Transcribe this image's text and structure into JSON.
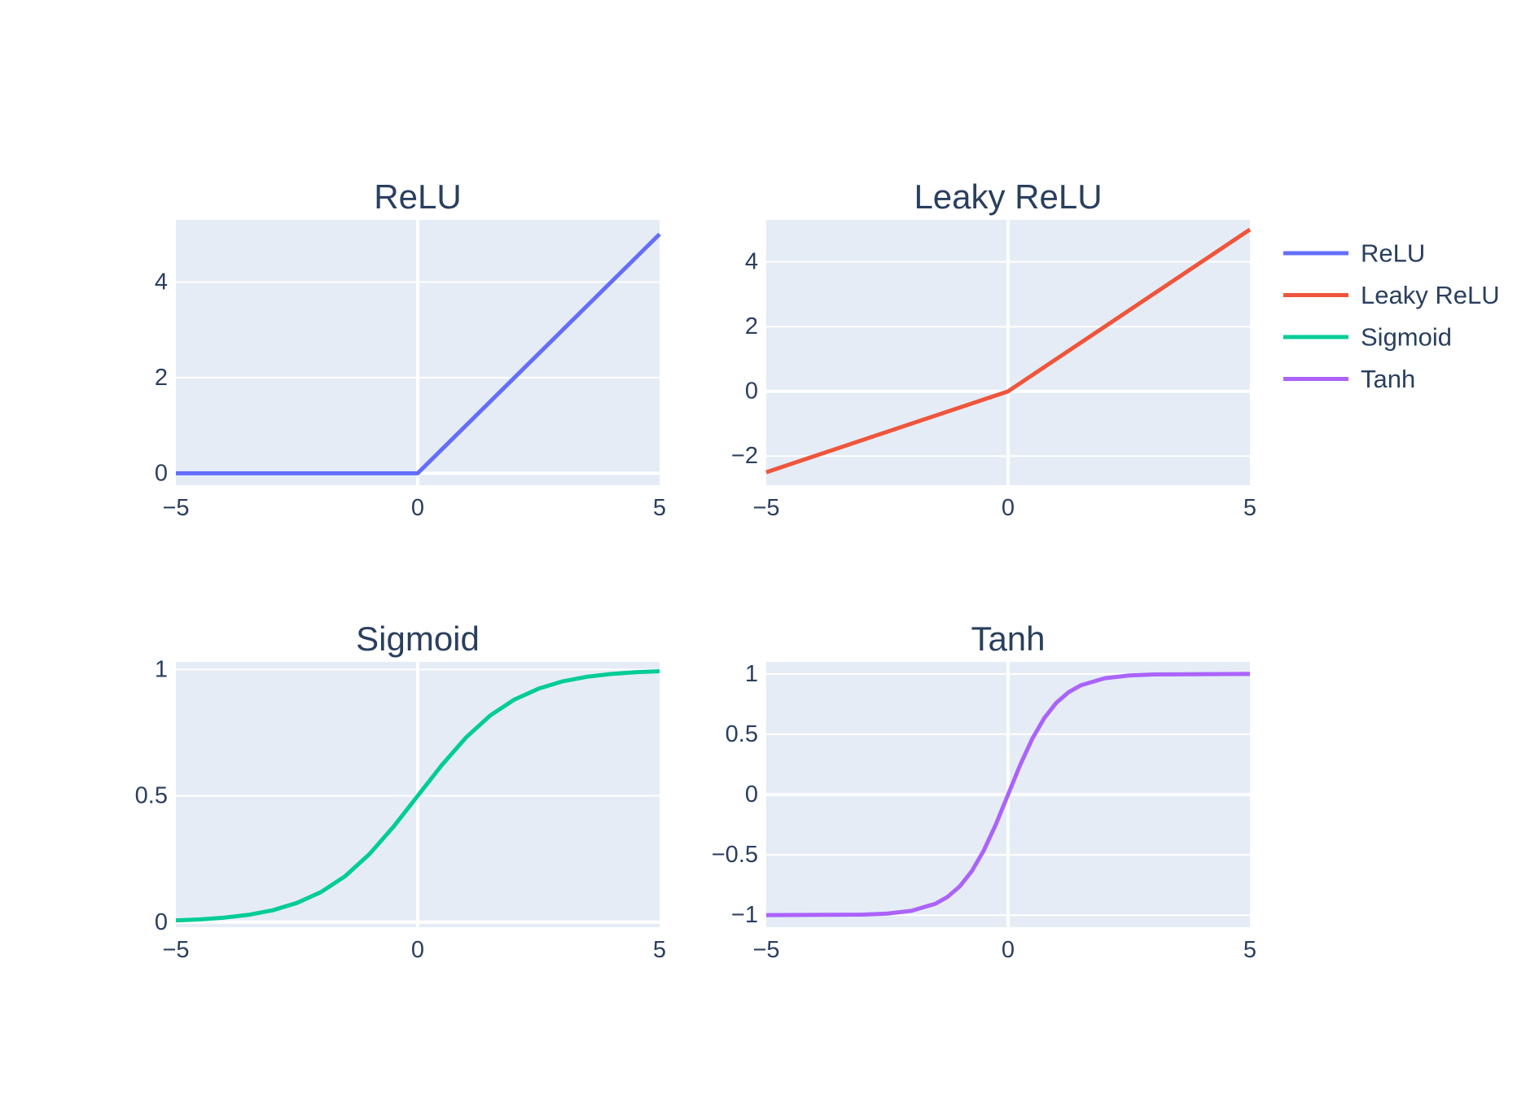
{
  "chart_data": [
    {
      "type": "line",
      "title": "ReLU",
      "color": "#636efa",
      "xlim": [
        -5,
        5
      ],
      "ylim": [
        -0.25,
        5.3
      ],
      "x_ticks": [
        -5,
        0,
        5
      ],
      "x_tick_labels": [
        "−5",
        "0",
        "5"
      ],
      "y_ticks": [
        0,
        2,
        4
      ],
      "y_tick_labels": [
        "0",
        "2",
        "4"
      ],
      "series": [
        {
          "name": "ReLU",
          "x": [
            -5,
            0,
            5
          ],
          "y": [
            0,
            0,
            5
          ]
        }
      ]
    },
    {
      "type": "line",
      "title": "Leaky ReLU",
      "color": "#ef553b",
      "xlim": [
        -5,
        5
      ],
      "ylim": [
        -2.9,
        5.3
      ],
      "x_ticks": [
        -5,
        0,
        5
      ],
      "x_tick_labels": [
        "−5",
        "0",
        "5"
      ],
      "y_ticks": [
        -2,
        0,
        2,
        4
      ],
      "y_tick_labels": [
        "−2",
        "0",
        "2",
        "4"
      ],
      "series": [
        {
          "name": "Leaky ReLU",
          "x": [
            -5,
            0,
            5
          ],
          "y": [
            -2.5,
            0,
            5
          ]
        }
      ]
    },
    {
      "type": "line",
      "title": "Sigmoid",
      "color": "#00cc96",
      "xlim": [
        -5,
        5
      ],
      "ylim": [
        -0.02,
        1.03
      ],
      "x_ticks": [
        -5,
        0,
        5
      ],
      "x_tick_labels": [
        "−5",
        "0",
        "5"
      ],
      "y_ticks": [
        0,
        0.5,
        1
      ],
      "y_tick_labels": [
        "0",
        "0.5",
        "1"
      ],
      "series": [
        {
          "name": "Sigmoid",
          "x": [
            -5,
            -4.5,
            -4,
            -3.5,
            -3,
            -2.5,
            -2,
            -1.5,
            -1,
            -0.5,
            0,
            0.5,
            1,
            1.5,
            2,
            2.5,
            3,
            3.5,
            4,
            4.5,
            5
          ],
          "y": [
            0.007,
            0.011,
            0.018,
            0.029,
            0.047,
            0.076,
            0.119,
            0.182,
            0.269,
            0.378,
            0.5,
            0.622,
            0.731,
            0.818,
            0.881,
            0.924,
            0.953,
            0.971,
            0.982,
            0.989,
            0.993
          ]
        }
      ]
    },
    {
      "type": "line",
      "title": "Tanh",
      "color": "#ab63fa",
      "xlim": [
        -5,
        5
      ],
      "ylim": [
        -1.1,
        1.1
      ],
      "x_ticks": [
        -5,
        0,
        5
      ],
      "x_tick_labels": [
        "−5",
        "0",
        "5"
      ],
      "y_ticks": [
        -1,
        -0.5,
        0,
        0.5,
        1
      ],
      "y_tick_labels": [
        "−1",
        "−0.5",
        "0",
        "0.5",
        "1"
      ],
      "series": [
        {
          "name": "Tanh",
          "x": [
            -5,
            -3,
            -2.5,
            -2,
            -1.5,
            -1.25,
            -1,
            -0.75,
            -0.5,
            -0.25,
            0,
            0.25,
            0.5,
            0.75,
            1,
            1.25,
            1.5,
            2,
            2.5,
            3,
            5
          ],
          "y": [
            -0.9999,
            -0.995,
            -0.987,
            -0.964,
            -0.905,
            -0.848,
            -0.762,
            -0.635,
            -0.462,
            -0.245,
            0,
            0.245,
            0.462,
            0.635,
            0.762,
            0.848,
            0.905,
            0.964,
            0.987,
            0.995,
            0.9999
          ]
        }
      ]
    }
  ],
  "legend": {
    "placement": "top-right",
    "items": [
      {
        "label": "ReLU",
        "color": "#636efa"
      },
      {
        "label": "Leaky ReLU",
        "color": "#ef553b"
      },
      {
        "label": "Sigmoid",
        "color": "#00cc96"
      },
      {
        "label": "Tanh",
        "color": "#ab63fa"
      }
    ]
  },
  "style": {
    "plot_background": "#e5ecf6",
    "grid_color": "#ffffff",
    "text_color": "#2a3f5f"
  }
}
